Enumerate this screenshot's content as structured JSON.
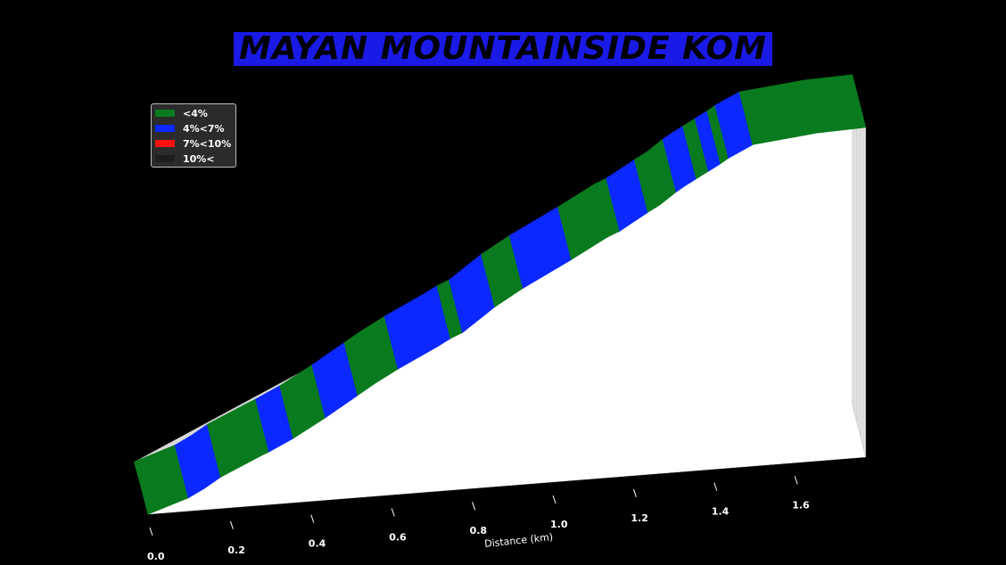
{
  "chart_data": {
    "type": "area",
    "title": "MAYAN MOUNTAINSIDE KOM",
    "xlabel": "Distance (km)",
    "ylabel": "",
    "xlim": [
      0,
      1.8
    ],
    "x_ticks": [
      0.0,
      0.2,
      0.4,
      0.6,
      0.8,
      1.0,
      1.2,
      1.4,
      1.6
    ],
    "x_tick_labels": [
      "0.0",
      "0.2",
      "0.4",
      "0.6",
      "0.8",
      "1.0",
      "1.2",
      "1.4",
      "1.6"
    ],
    "legend_placement": "top-left",
    "legend": [
      {
        "label": "<4%",
        "color": "#0a7a1e"
      },
      {
        "label": "4%<7%",
        "color": "#0a28ff"
      },
      {
        "label": "7%<10%",
        "color": "#ff1010"
      },
      {
        "label": "10%<",
        "color": "#1e1e1e"
      }
    ],
    "profile_distance_km": [
      0.0,
      0.1,
      0.14,
      0.18,
      0.28,
      0.3,
      0.36,
      0.44,
      0.46,
      0.52,
      0.56,
      0.62,
      0.72,
      0.75,
      0.78,
      0.82,
      0.86,
      0.93,
      1.05,
      1.14,
      1.17,
      1.24,
      1.27,
      1.31,
      1.33,
      1.36,
      1.39,
      1.42,
      1.44,
      1.5,
      1.58,
      1.66,
      1.78
    ],
    "profile_elevation_m": [
      0.0,
      4.0,
      6.5,
      9.5,
      15.0,
      16.0,
      19.5,
      25.0,
      26.5,
      31.0,
      34.0,
      38.0,
      44.0,
      46.0,
      47.5,
      51.0,
      54.5,
      59.5,
      67.0,
      73.0,
      74.5,
      79.5,
      81.5,
      85.0,
      86.5,
      88.5,
      90.5,
      92.5,
      94.0,
      97.5,
      98.5,
      99.5,
      100.0
    ],
    "segment_gradient_class": [
      "<4%",
      "4%<7%",
      "4%<7%",
      "<4%",
      "<4%",
      "4%<7%",
      "<4%",
      "4%<7%",
      "4%<7%",
      "<4%",
      "<4%",
      "4%<7%",
      "4%<7%",
      "<4%",
      "4%<7%",
      "4%<7%",
      "<4%",
      "4%<7%",
      "<4%",
      "<4%",
      "4%<7%",
      "<4%",
      "<4%",
      "4%<7%",
      "4%<7%",
      "<4%",
      "4%<7%",
      "<4%",
      "4%<7%",
      "<4%",
      "<4%",
      "<4%"
    ]
  }
}
